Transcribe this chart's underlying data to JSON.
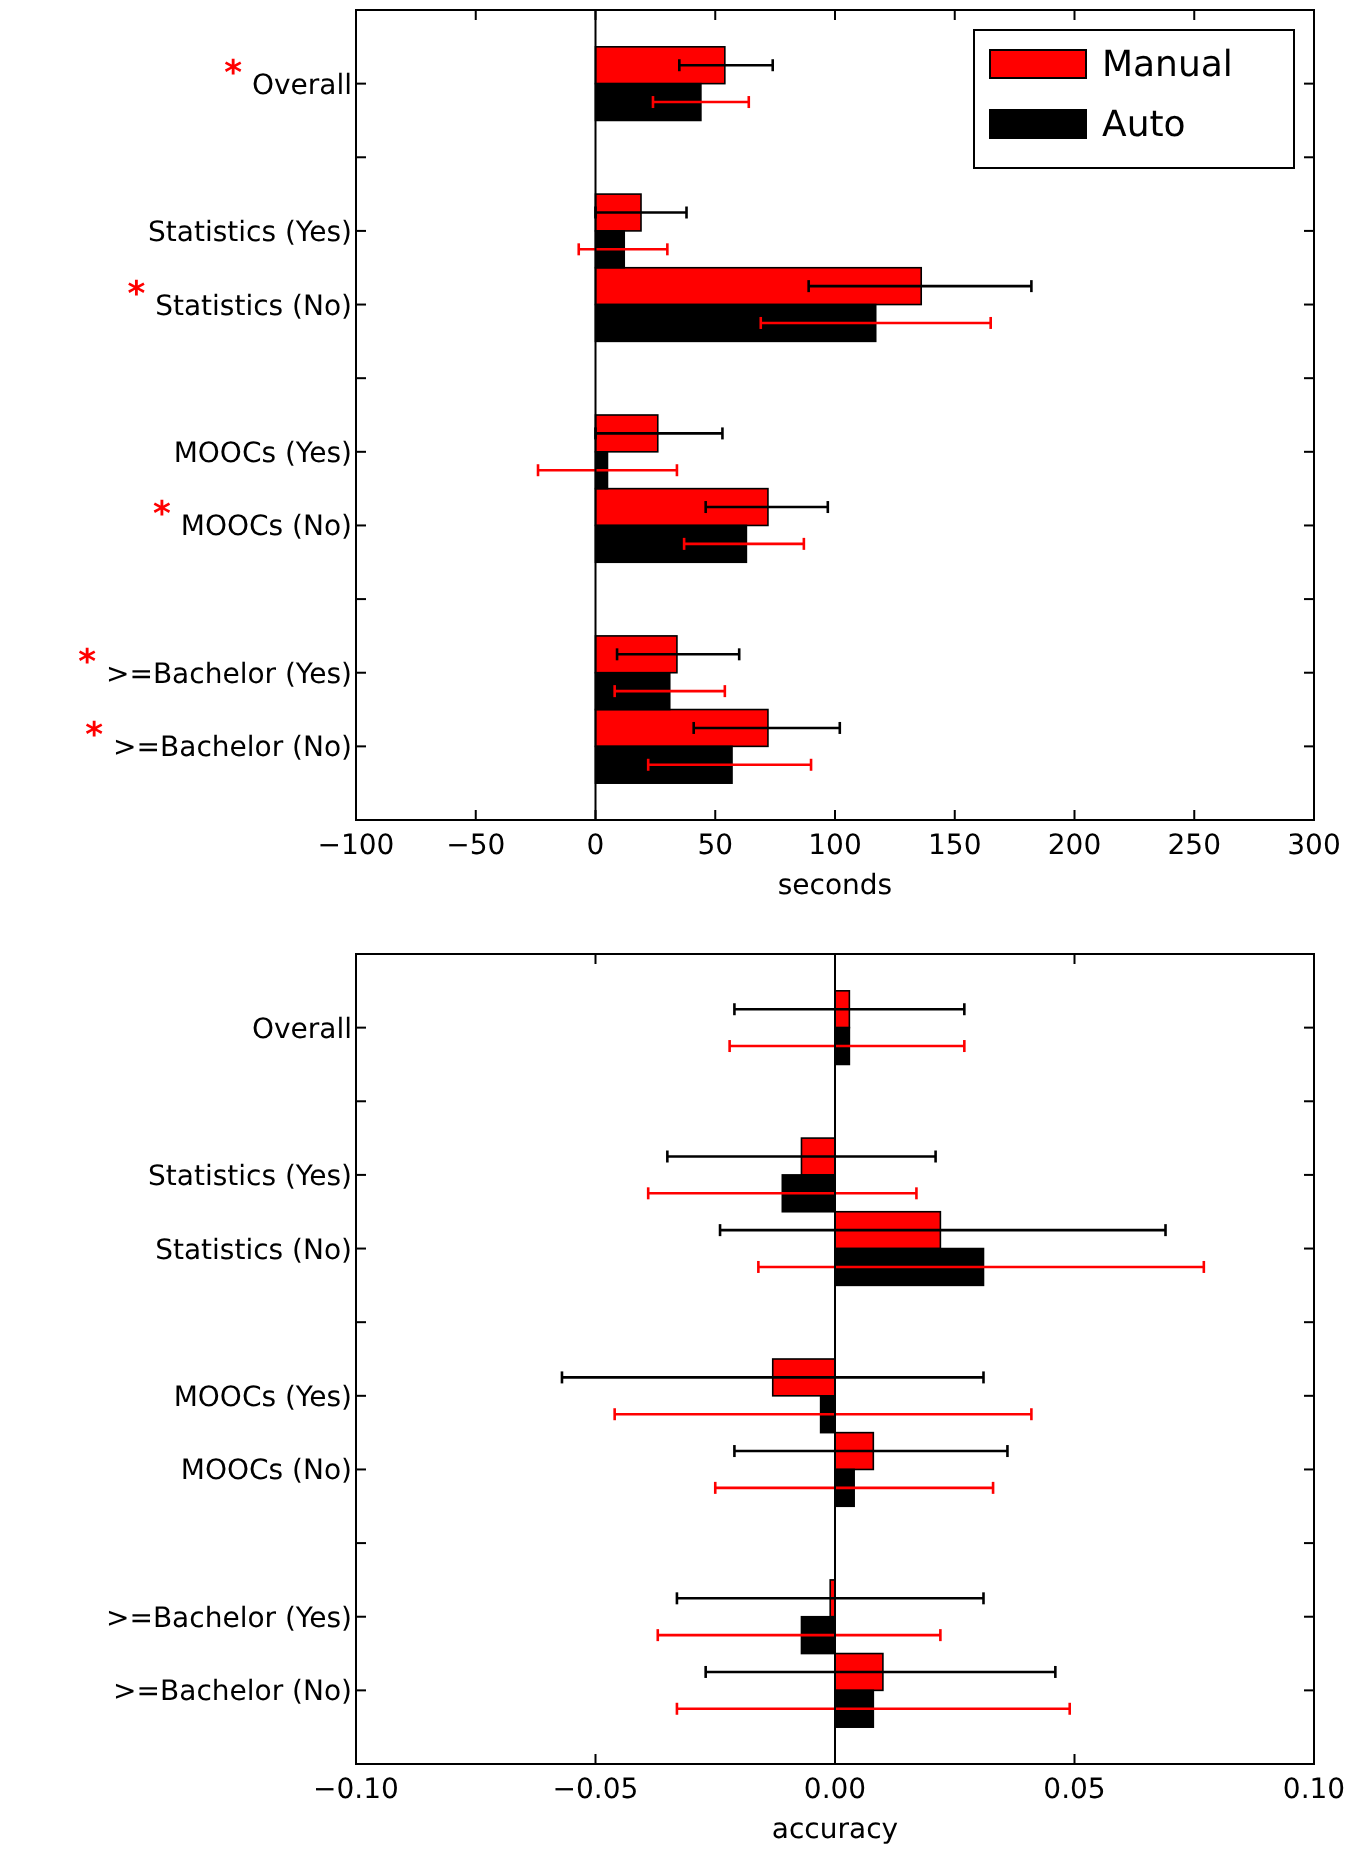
{
  "chart_data": [
    {
      "type": "bar",
      "orientation": "horizontal",
      "xlabel": "seconds",
      "legend": "top right",
      "grid": false,
      "categories": [
        "$^{*}$Overall",
        null,
        "Statistics (Yes)",
        "$^{*}$Statistics (No)",
        null,
        "MOOCs (Yes)",
        "$^{*}$MOOCs (No)",
        null,
        "$^{*}$>=Bachelor (Yes)",
        "$^{*}$>=Bachelor (No)"
      ],
      "xlim": [
        -100,
        300
      ],
      "ref_lines": [
        {
          "axis": "x",
          "value": 0,
          "color": "#000000"
        }
      ],
      "xticks": [
        {
          "value": -100,
          "label": "−100"
        },
        {
          "value": -50,
          "label": "−50"
        },
        0,
        50,
        100,
        150,
        200,
        250,
        300
      ],
      "series": [
        {
          "name": "Manual",
          "color": "#ff0000",
          "values": [
            54,
            null,
            19,
            136,
            null,
            26,
            72,
            null,
            34,
            72
          ],
          "errors": [
            [
              35,
              74
            ],
            null,
            [
              0,
              38
            ],
            [
              89,
              182
            ],
            null,
            [
              0,
              53
            ],
            [
              46,
              97
            ],
            null,
            [
              9,
              60
            ],
            [
              41,
              102
            ]
          ]
        },
        {
          "name": "Auto",
          "color": "#000000",
          "values": [
            44,
            null,
            12,
            117,
            null,
            5,
            63,
            null,
            31,
            57
          ],
          "errors": [
            [
              24,
              64
            ],
            null,
            [
              -7,
              30
            ],
            [
              69,
              165
            ],
            null,
            [
              -24,
              34
            ],
            [
              37,
              87
            ],
            null,
            [
              8,
              54
            ],
            [
              22,
              90
            ]
          ]
        }
      ]
    },
    {
      "type": "bar",
      "orientation": "horizontal",
      "xlabel": "accuracy",
      "legend": false,
      "grid": false,
      "categories": [
        "Overall",
        null,
        "Statistics (Yes)",
        "Statistics (No)",
        null,
        "MOOCs (Yes)",
        "MOOCs (No)",
        null,
        ">=Bachelor (Yes)",
        ">=Bachelor (No)"
      ],
      "xlim": [
        -0.1,
        0.1
      ],
      "ref_lines": [
        {
          "axis": "x",
          "value": 0,
          "color": "#000000"
        }
      ],
      "xticks": [
        {
          "value": -0.1,
          "label": "−0.10"
        },
        {
          "value": -0.05,
          "label": "−0.05"
        },
        {
          "value": 0,
          "label": "0.00"
        },
        0.05,
        {
          "value": 0.1,
          "label": "0.10"
        }
      ],
      "series": [
        {
          "color": "#ff0000",
          "values": [
            0.003,
            null,
            -0.007,
            0.022,
            null,
            -0.013,
            0.008,
            null,
            -0.001,
            0.01
          ],
          "errors": [
            [
              -0.021,
              0.027
            ],
            null,
            [
              -0.035,
              0.021
            ],
            [
              -0.024,
              0.069
            ],
            null,
            [
              -0.057,
              0.031
            ],
            [
              -0.021,
              0.036
            ],
            null,
            [
              -0.033,
              0.031
            ],
            [
              -0.027,
              0.046
            ]
          ]
        },
        {
          "color": "#000000",
          "values": [
            0.003,
            null,
            -0.011,
            0.031,
            null,
            -0.003,
            0.004,
            null,
            -0.007,
            0.008
          ],
          "errors": [
            [
              -0.022,
              0.027
            ],
            null,
            [
              -0.039,
              0.017
            ],
            [
              -0.016,
              0.077
            ],
            null,
            [
              -0.046,
              0.041
            ],
            [
              -0.025,
              0.033
            ],
            null,
            [
              -0.037,
              0.022
            ],
            [
              -0.033,
              0.049
            ]
          ]
        }
      ]
    }
  ]
}
